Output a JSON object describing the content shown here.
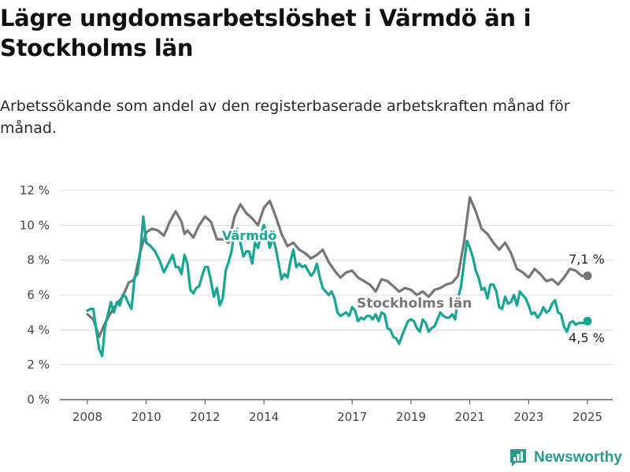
{
  "title": "Lägre ungdomsarbetslöshet i Värmdö än i Stockholms län",
  "subtitle": "Arbetssökande som andel av den registerbaserade arbetskraften månad för månad.",
  "brand": "Newsworthy",
  "colors": {
    "varmdo": "#17a594",
    "stockholm": "#767676",
    "grid": "#dddddd",
    "axis": "#444444"
  },
  "chart_data": {
    "type": "line",
    "y_ticks": [
      "0 %",
      "2 %",
      "4 %",
      "6 %",
      "8 %",
      "10 %",
      "12 %"
    ],
    "x_ticks": [
      "2008",
      "2010",
      "2012",
      "2014",
      "2017",
      "2019",
      "2021",
      "2023",
      "2025"
    ],
    "ylim": [
      0,
      12
    ],
    "grid": true,
    "series": [
      {
        "name": "Värmdö",
        "color": "#17a594",
        "end_label": "4,5 %",
        "points": [
          [
            2008.0,
            5.1
          ],
          [
            2008.1,
            5.2
          ],
          [
            2008.2,
            5.2
          ],
          [
            2008.3,
            4.0
          ],
          [
            2008.4,
            2.9
          ],
          [
            2008.5,
            2.5
          ],
          [
            2008.6,
            4.2
          ],
          [
            2008.7,
            4.9
          ],
          [
            2008.8,
            5.6
          ],
          [
            2008.9,
            5.0
          ],
          [
            2009.0,
            5.6
          ],
          [
            2009.1,
            5.4
          ],
          [
            2009.2,
            6.0
          ],
          [
            2009.3,
            5.9
          ],
          [
            2009.4,
            5.5
          ],
          [
            2009.5,
            5.2
          ],
          [
            2009.6,
            7.0
          ],
          [
            2009.7,
            7.2
          ],
          [
            2009.8,
            8.5
          ],
          [
            2009.9,
            10.5
          ],
          [
            2010.0,
            9.0
          ],
          [
            2010.15,
            8.8
          ],
          [
            2010.3,
            8.5
          ],
          [
            2010.45,
            8.0
          ],
          [
            2010.6,
            7.3
          ],
          [
            2010.75,
            7.8
          ],
          [
            2010.9,
            8.3
          ],
          [
            2011.0,
            7.6
          ],
          [
            2011.1,
            7.6
          ],
          [
            2011.2,
            7.2
          ],
          [
            2011.3,
            8.3
          ],
          [
            2011.4,
            7.8
          ],
          [
            2011.5,
            6.3
          ],
          [
            2011.6,
            6.1
          ],
          [
            2011.7,
            6.4
          ],
          [
            2011.8,
            6.5
          ],
          [
            2011.9,
            7.1
          ],
          [
            2012.0,
            7.6
          ],
          [
            2012.1,
            7.6
          ],
          [
            2012.2,
            6.8
          ],
          [
            2012.3,
            5.9
          ],
          [
            2012.4,
            6.4
          ],
          [
            2012.5,
            5.4
          ],
          [
            2012.6,
            5.8
          ],
          [
            2012.7,
            7.4
          ],
          [
            2012.8,
            7.9
          ],
          [
            2012.9,
            8.5
          ],
          [
            2013.0,
            9.7
          ],
          [
            2013.1,
            9.8
          ],
          [
            2013.2,
            9.0
          ],
          [
            2013.3,
            8.2
          ],
          [
            2013.4,
            8.5
          ],
          [
            2013.5,
            8.5
          ],
          [
            2013.6,
            7.8
          ],
          [
            2013.7,
            9.0
          ],
          [
            2013.8,
            8.7
          ],
          [
            2013.9,
            9.5
          ],
          [
            2014.0,
            10.0
          ],
          [
            2014.1,
            9.5
          ],
          [
            2014.2,
            8.7
          ],
          [
            2014.3,
            9.3
          ],
          [
            2014.4,
            8.7
          ],
          [
            2014.5,
            7.8
          ],
          [
            2014.6,
            6.9
          ],
          [
            2014.7,
            7.2
          ],
          [
            2014.8,
            7.0
          ],
          [
            2014.9,
            7.9
          ],
          [
            2015.0,
            8.6
          ],
          [
            2015.1,
            7.6
          ],
          [
            2015.2,
            7.8
          ],
          [
            2015.3,
            7.6
          ],
          [
            2015.4,
            7.7
          ],
          [
            2015.5,
            7.4
          ],
          [
            2015.6,
            7.1
          ],
          [
            2015.7,
            7.3
          ],
          [
            2015.8,
            7.8
          ],
          [
            2015.9,
            7.0
          ],
          [
            2016.0,
            6.4
          ],
          [
            2016.1,
            6.2
          ],
          [
            2016.2,
            6.0
          ],
          [
            2016.3,
            6.2
          ],
          [
            2016.4,
            5.8
          ],
          [
            2016.5,
            5.0
          ],
          [
            2016.6,
            4.8
          ],
          [
            2016.7,
            4.9
          ],
          [
            2016.8,
            5.0
          ],
          [
            2016.9,
            4.8
          ],
          [
            2017.0,
            5.3
          ],
          [
            2017.1,
            5.1
          ],
          [
            2017.2,
            4.5
          ],
          [
            2017.3,
            4.7
          ],
          [
            2017.4,
            4.6
          ],
          [
            2017.5,
            4.8
          ],
          [
            2017.6,
            4.8
          ],
          [
            2017.7,
            4.6
          ],
          [
            2017.8,
            4.9
          ],
          [
            2017.9,
            4.5
          ],
          [
            2018.0,
            5.0
          ],
          [
            2018.1,
            4.9
          ],
          [
            2018.2,
            4.1
          ],
          [
            2018.3,
            4.0
          ],
          [
            2018.4,
            3.6
          ],
          [
            2018.5,
            3.5
          ],
          [
            2018.6,
            3.2
          ],
          [
            2018.7,
            3.7
          ],
          [
            2018.8,
            4.1
          ],
          [
            2018.9,
            4.5
          ],
          [
            2019.0,
            4.6
          ],
          [
            2019.1,
            4.5
          ],
          [
            2019.2,
            4.1
          ],
          [
            2019.3,
            3.9
          ],
          [
            2019.4,
            4.6
          ],
          [
            2019.5,
            4.4
          ],
          [
            2019.6,
            3.9
          ],
          [
            2019.7,
            4.1
          ],
          [
            2019.8,
            4.2
          ],
          [
            2019.9,
            4.6
          ],
          [
            2020.0,
            5.0
          ],
          [
            2020.1,
            4.8
          ],
          [
            2020.2,
            4.7
          ],
          [
            2020.3,
            4.7
          ],
          [
            2020.4,
            4.9
          ],
          [
            2020.5,
            4.6
          ],
          [
            2020.6,
            5.8
          ],
          [
            2020.7,
            6.5
          ],
          [
            2020.8,
            7.8
          ],
          [
            2020.9,
            9.1
          ],
          [
            2021.0,
            8.7
          ],
          [
            2021.1,
            8.2
          ],
          [
            2021.2,
            7.4
          ],
          [
            2021.3,
            7.0
          ],
          [
            2021.4,
            6.3
          ],
          [
            2021.5,
            6.4
          ],
          [
            2021.6,
            5.8
          ],
          [
            2021.7,
            6.6
          ],
          [
            2021.8,
            6.6
          ],
          [
            2021.9,
            6.2
          ],
          [
            2022.0,
            5.3
          ],
          [
            2022.1,
            5.2
          ],
          [
            2022.2,
            5.9
          ],
          [
            2022.3,
            5.5
          ],
          [
            2022.4,
            5.6
          ],
          [
            2022.5,
            6.0
          ],
          [
            2022.6,
            5.4
          ],
          [
            2022.7,
            6.2
          ],
          [
            2022.8,
            6.0
          ],
          [
            2022.9,
            5.8
          ],
          [
            2023.0,
            5.4
          ],
          [
            2023.1,
            4.9
          ],
          [
            2023.2,
            5.0
          ],
          [
            2023.3,
            4.7
          ],
          [
            2023.4,
            4.9
          ],
          [
            2023.5,
            5.3
          ],
          [
            2023.6,
            5.0
          ],
          [
            2023.7,
            5.1
          ],
          [
            2023.8,
            5.5
          ],
          [
            2023.9,
            5.7
          ],
          [
            2024.0,
            5.0
          ],
          [
            2024.1,
            4.9
          ],
          [
            2024.2,
            4.2
          ],
          [
            2024.3,
            3.9
          ],
          [
            2024.4,
            4.4
          ],
          [
            2024.5,
            4.5
          ],
          [
            2024.6,
            4.3
          ],
          [
            2024.7,
            4.4
          ],
          [
            2024.8,
            4.4
          ],
          [
            2024.9,
            4.4
          ],
          [
            2025.0,
            4.5
          ]
        ]
      },
      {
        "name": "Stockholms län",
        "color": "#767676",
        "end_label": "7,1 %",
        "points": [
          [
            2008.0,
            4.9
          ],
          [
            2008.2,
            4.6
          ],
          [
            2008.4,
            3.6
          ],
          [
            2008.6,
            4.4
          ],
          [
            2008.8,
            5.0
          ],
          [
            2009.0,
            5.5
          ],
          [
            2009.2,
            5.9
          ],
          [
            2009.4,
            6.7
          ],
          [
            2009.6,
            6.9
          ],
          [
            2009.8,
            8.5
          ],
          [
            2010.0,
            9.6
          ],
          [
            2010.2,
            9.8
          ],
          [
            2010.4,
            9.7
          ],
          [
            2010.6,
            9.4
          ],
          [
            2010.8,
            10.2
          ],
          [
            2011.0,
            10.8
          ],
          [
            2011.2,
            10.2
          ],
          [
            2011.3,
            9.5
          ],
          [
            2011.4,
            9.7
          ],
          [
            2011.6,
            9.3
          ],
          [
            2011.8,
            10.0
          ],
          [
            2012.0,
            10.5
          ],
          [
            2012.2,
            10.2
          ],
          [
            2012.4,
            9.2
          ],
          [
            2012.6,
            9.2
          ],
          [
            2012.8,
            9.0
          ],
          [
            2013.0,
            10.5
          ],
          [
            2013.2,
            11.2
          ],
          [
            2013.4,
            10.7
          ],
          [
            2013.6,
            10.4
          ],
          [
            2013.8,
            10.0
          ],
          [
            2014.0,
            11.0
          ],
          [
            2014.2,
            11.4
          ],
          [
            2014.4,
            10.5
          ],
          [
            2014.6,
            9.5
          ],
          [
            2014.8,
            8.8
          ],
          [
            2015.0,
            9.0
          ],
          [
            2015.2,
            8.6
          ],
          [
            2015.4,
            8.4
          ],
          [
            2015.6,
            8.1
          ],
          [
            2015.8,
            8.3
          ],
          [
            2016.0,
            8.6
          ],
          [
            2016.2,
            7.9
          ],
          [
            2016.4,
            7.4
          ],
          [
            2016.6,
            7.0
          ],
          [
            2016.8,
            7.3
          ],
          [
            2017.0,
            7.4
          ],
          [
            2017.2,
            7.0
          ],
          [
            2017.4,
            6.8
          ],
          [
            2017.6,
            6.6
          ],
          [
            2017.8,
            6.2
          ],
          [
            2018.0,
            6.9
          ],
          [
            2018.2,
            6.8
          ],
          [
            2018.4,
            6.5
          ],
          [
            2018.6,
            6.2
          ],
          [
            2018.8,
            6.4
          ],
          [
            2019.0,
            6.3
          ],
          [
            2019.2,
            6.0
          ],
          [
            2019.4,
            6.2
          ],
          [
            2019.6,
            5.9
          ],
          [
            2019.8,
            6.3
          ],
          [
            2020.0,
            6.4
          ],
          [
            2020.2,
            6.6
          ],
          [
            2020.4,
            6.7
          ],
          [
            2020.6,
            7.1
          ],
          [
            2020.8,
            9.0
          ],
          [
            2021.0,
            11.6
          ],
          [
            2021.2,
            10.8
          ],
          [
            2021.4,
            9.8
          ],
          [
            2021.6,
            9.5
          ],
          [
            2021.8,
            9.0
          ],
          [
            2022.0,
            8.6
          ],
          [
            2022.2,
            9.0
          ],
          [
            2022.4,
            8.4
          ],
          [
            2022.6,
            7.5
          ],
          [
            2022.8,
            7.3
          ],
          [
            2023.0,
            7.0
          ],
          [
            2023.2,
            7.5
          ],
          [
            2023.4,
            7.2
          ],
          [
            2023.6,
            6.8
          ],
          [
            2023.8,
            6.9
          ],
          [
            2024.0,
            6.6
          ],
          [
            2024.2,
            7.0
          ],
          [
            2024.4,
            7.5
          ],
          [
            2024.6,
            7.4
          ],
          [
            2024.8,
            7.1
          ],
          [
            2025.0,
            7.1
          ]
        ]
      }
    ]
  }
}
